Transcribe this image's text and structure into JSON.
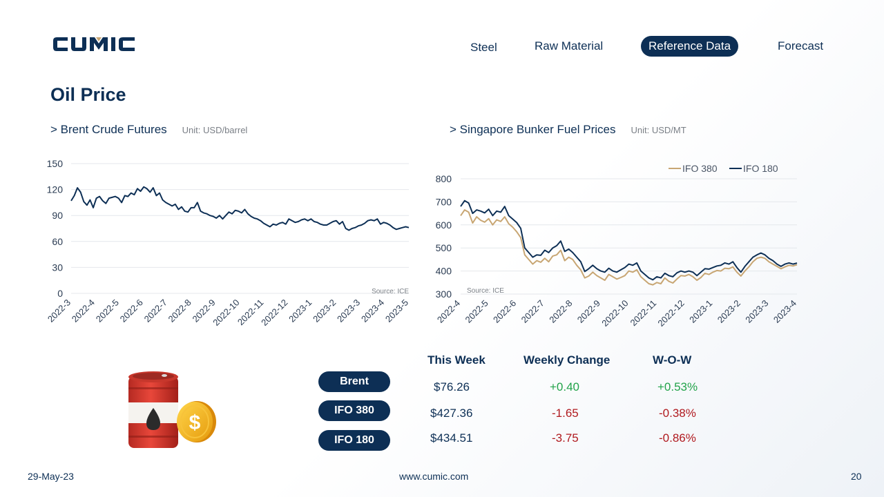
{
  "brand": {
    "logo_text": "CUMIC",
    "colors": {
      "navy": "#0d2f55",
      "gold": "#c8a673",
      "positive": "#22a34a",
      "negative": "#b0191e"
    }
  },
  "nav": {
    "items": [
      {
        "label": "Steel",
        "active": false
      },
      {
        "label": "Raw Material",
        "active": false
      },
      {
        "label": "Reference Data",
        "active": true
      },
      {
        "label": "Forecast",
        "active": false
      }
    ]
  },
  "page": {
    "title": "Oil Price"
  },
  "charts": {
    "brent": {
      "heading": "> Brent Crude Futures",
      "unit": "Unit: USD/barrel",
      "source": "Source: ICE"
    },
    "bunker": {
      "heading": "> Singapore Bunker Fuel Prices",
      "unit": "Unit: USD/MT",
      "source": "Source: ICE"
    }
  },
  "chart_data": [
    {
      "type": "line",
      "title": "> Brent Crude Futures",
      "ylabel": "Unit: USD/barrel",
      "ylim": [
        0,
        150
      ],
      "yticks": [
        0,
        30,
        60,
        90,
        120,
        150
      ],
      "xticks": [
        "2022-3",
        "2022-4",
        "2022-5",
        "2022-6",
        "2022-7",
        "2022-8",
        "2022-9",
        "2022-10",
        "2022-11",
        "2022-12",
        "2023-1",
        "2023-2",
        "2023-3",
        "2023-4",
        "2023-5"
      ],
      "grid": true,
      "series": [
        {
          "color": "#0d2f55",
          "values": [
            107,
            113,
            122,
            117,
            106,
            102,
            108,
            99,
            110,
            112,
            107,
            104,
            110,
            111,
            112,
            110,
            105,
            113,
            112,
            116,
            114,
            121,
            118,
            123,
            121,
            117,
            122,
            113,
            116,
            108,
            105,
            103,
            101,
            103,
            97,
            100,
            95,
            94,
            99,
            99,
            105,
            95,
            93,
            92,
            90,
            89,
            87,
            90,
            86,
            90,
            94,
            92,
            96,
            95,
            93,
            97,
            92,
            89,
            87,
            86,
            84,
            81,
            79,
            77,
            80,
            79,
            81,
            82,
            80,
            86,
            84,
            82,
            83,
            85,
            86,
            84,
            86,
            83,
            82,
            80,
            79,
            79,
            81,
            83,
            84,
            80,
            83,
            75,
            73,
            75,
            76,
            78,
            79,
            81,
            84,
            85,
            84,
            86,
            80,
            82,
            81,
            79,
            76,
            74,
            75,
            76,
            77,
            76
          ]
        }
      ]
    },
    {
      "type": "line",
      "title": "> Singapore Bunker Fuel Prices",
      "ylabel": "Unit: USD/MT",
      "ylim": [
        300,
        800
      ],
      "yticks": [
        300,
        400,
        500,
        600,
        700,
        800
      ],
      "xticks": [
        "2022-4",
        "2022-5",
        "2022-6",
        "2022-7",
        "2022-8",
        "2022-9",
        "2022-10",
        "2022-11",
        "2022-12",
        "2023-1",
        "2023-2",
        "2023-3",
        "2023-4"
      ],
      "grid": true,
      "legend": "top-right",
      "series": [
        {
          "name": "IFO 380",
          "color": "#c8a673",
          "values": [
            640,
            665,
            655,
            608,
            635,
            620,
            612,
            627,
            600,
            622,
            615,
            635,
            605,
            590,
            570,
            545,
            470,
            450,
            430,
            445,
            438,
            455,
            440,
            465,
            470,
            490,
            445,
            460,
            450,
            425,
            405,
            370,
            378,
            395,
            380,
            370,
            360,
            385,
            375,
            365,
            372,
            380,
            400,
            395,
            405,
            375,
            360,
            345,
            340,
            350,
            345,
            370,
            355,
            348,
            365,
            380,
            378,
            385,
            375,
            360,
            372,
            390,
            385,
            395,
            402,
            400,
            412,
            410,
            418,
            395,
            378,
            400,
            418,
            440,
            455,
            460,
            455,
            440,
            430,
            420,
            410,
            418,
            425,
            422,
            427
          ]
        },
        {
          "name": "IFO 180",
          "color": "#0d2f55",
          "values": [
            680,
            705,
            695,
            650,
            665,
            660,
            652,
            668,
            640,
            660,
            655,
            680,
            640,
            625,
            610,
            585,
            500,
            480,
            460,
            470,
            468,
            490,
            480,
            500,
            510,
            530,
            485,
            495,
            480,
            460,
            440,
            398,
            410,
            425,
            410,
            400,
            395,
            412,
            400,
            395,
            405,
            415,
            430,
            425,
            435,
            400,
            385,
            370,
            362,
            375,
            370,
            390,
            380,
            375,
            392,
            400,
            395,
            400,
            395,
            380,
            395,
            410,
            408,
            415,
            422,
            425,
            435,
            430,
            440,
            415,
            395,
            420,
            440,
            460,
            470,
            478,
            470,
            455,
            445,
            430,
            420,
            430,
            435,
            430,
            434.51
          ]
        }
      ]
    }
  ],
  "table": {
    "headers": {
      "this_week": "This Week",
      "weekly_change": "Weekly Change",
      "wow": "W-O-W"
    },
    "rows": [
      {
        "name": "Brent",
        "this_week": "$76.26",
        "weekly_change": "+0.40",
        "wow": "+0.53%",
        "direction": "up"
      },
      {
        "name": "IFO 380",
        "this_week": "$427.36",
        "weekly_change": "-1.65",
        "wow": "-0.38%",
        "direction": "down"
      },
      {
        "name": "IFO 180",
        "this_week": "$434.51",
        "weekly_change": "-3.75",
        "wow": "-0.86%",
        "direction": "down"
      }
    ]
  },
  "footer": {
    "date": "29-May-23",
    "website": "www.cumic.com",
    "page_number": "20"
  },
  "icons": {
    "barrel": "oil-barrel-icon",
    "coin": "dollar-coin-icon"
  }
}
